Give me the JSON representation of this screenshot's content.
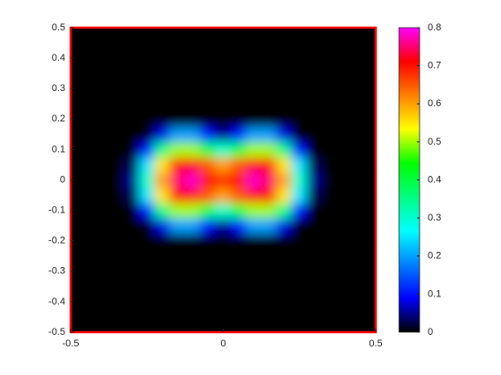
{
  "chart_data": {
    "type": "heatmap",
    "x": [
      -0.5,
      -0.45,
      -0.4,
      -0.35,
      -0.3,
      -0.25,
      -0.2,
      -0.15,
      -0.1,
      -0.05,
      0,
      0.05,
      0.1,
      0.15,
      0.2,
      0.25,
      0.3,
      0.35,
      0.4,
      0.45,
      0.5
    ],
    "y": [
      -0.5,
      -0.45,
      -0.4,
      -0.35,
      -0.3,
      -0.25,
      -0.2,
      -0.15,
      -0.1,
      -0.05,
      0,
      0.05,
      0.1,
      0.15,
      0.2,
      0.25,
      0.3,
      0.35,
      0.4,
      0.45,
      0.5
    ],
    "z": [
      [
        0,
        0,
        0,
        0,
        0,
        0,
        0,
        0,
        0,
        0,
        0,
        0,
        0,
        0,
        0,
        0,
        0,
        0,
        0,
        0,
        0
      ],
      [
        0,
        0,
        0,
        0,
        0,
        0,
        0,
        0,
        0,
        0,
        0,
        0,
        0,
        0,
        0,
        0,
        0,
        0,
        0,
        0,
        0
      ],
      [
        0,
        0,
        0,
        0,
        0,
        0,
        0,
        0,
        0,
        0,
        0,
        0,
        0,
        0,
        0,
        0,
        0,
        0,
        0,
        0,
        0
      ],
      [
        0,
        0,
        0,
        0,
        0,
        0,
        0,
        0,
        0,
        0,
        0,
        0,
        0,
        0,
        0,
        0,
        0,
        0,
        0,
        0,
        0
      ],
      [
        0,
        0,
        0,
        0,
        0,
        0,
        0,
        0,
        0,
        0,
        0,
        0,
        0,
        0,
        0,
        0,
        0,
        0,
        0,
        0,
        0
      ],
      [
        0,
        0,
        0,
        0,
        0,
        0,
        0,
        0,
        0,
        0,
        0,
        0,
        0,
        0,
        0,
        0,
        0,
        0,
        0,
        0,
        0
      ],
      [
        0,
        0,
        0,
        0,
        0,
        0,
        0,
        0,
        0,
        0,
        0,
        0,
        0,
        0,
        0,
        0,
        0,
        0,
        0,
        0,
        0
      ],
      [
        0,
        0,
        0,
        0,
        0,
        0,
        0.08,
        0.2,
        0.2,
        0.1,
        0.05,
        0.1,
        0.2,
        0.2,
        0.08,
        0,
        0,
        0,
        0,
        0,
        0
      ],
      [
        0,
        0,
        0,
        0,
        0,
        0.1,
        0.35,
        0.5,
        0.5,
        0.4,
        0.3,
        0.4,
        0.5,
        0.5,
        0.35,
        0.1,
        0,
        0,
        0,
        0,
        0
      ],
      [
        0,
        0,
        0,
        0,
        0.03,
        0.25,
        0.55,
        0.7,
        0.72,
        0.65,
        0.6,
        0.65,
        0.72,
        0.7,
        0.55,
        0.25,
        0.03,
        0,
        0,
        0,
        0
      ],
      [
        0,
        0,
        0,
        0,
        0.05,
        0.3,
        0.6,
        0.75,
        0.78,
        0.7,
        0.68,
        0.7,
        0.78,
        0.75,
        0.6,
        0.3,
        0.05,
        0,
        0,
        0,
        0
      ],
      [
        0,
        0,
        0,
        0,
        0.03,
        0.25,
        0.55,
        0.7,
        0.72,
        0.65,
        0.6,
        0.65,
        0.72,
        0.7,
        0.55,
        0.25,
        0.03,
        0,
        0,
        0,
        0
      ],
      [
        0,
        0,
        0,
        0,
        0,
        0.1,
        0.35,
        0.5,
        0.5,
        0.4,
        0.3,
        0.4,
        0.5,
        0.5,
        0.35,
        0.1,
        0,
        0,
        0,
        0,
        0
      ],
      [
        0,
        0,
        0,
        0,
        0,
        0,
        0.08,
        0.2,
        0.2,
        0.1,
        0.05,
        0.1,
        0.2,
        0.2,
        0.08,
        0,
        0,
        0,
        0,
        0,
        0
      ],
      [
        0,
        0,
        0,
        0,
        0,
        0,
        0,
        0,
        0,
        0,
        0,
        0,
        0,
        0,
        0,
        0,
        0,
        0,
        0,
        0,
        0
      ],
      [
        0,
        0,
        0,
        0,
        0,
        0,
        0,
        0,
        0,
        0,
        0,
        0,
        0,
        0,
        0,
        0,
        0,
        0,
        0,
        0,
        0
      ],
      [
        0,
        0,
        0,
        0,
        0,
        0,
        0,
        0,
        0,
        0,
        0,
        0,
        0,
        0,
        0,
        0,
        0,
        0,
        0,
        0,
        0
      ],
      [
        0,
        0,
        0,
        0,
        0,
        0,
        0,
        0,
        0,
        0,
        0,
        0,
        0,
        0,
        0,
        0,
        0,
        0,
        0,
        0,
        0
      ],
      [
        0,
        0,
        0,
        0,
        0,
        0,
        0,
        0,
        0,
        0,
        0,
        0,
        0,
        0,
        0,
        0,
        0,
        0,
        0,
        0,
        0
      ],
      [
        0,
        0,
        0,
        0,
        0,
        0,
        0,
        0,
        0,
        0,
        0,
        0,
        0,
        0,
        0,
        0,
        0,
        0,
        0,
        0,
        0
      ],
      [
        0,
        0,
        0,
        0,
        0,
        0,
        0,
        0,
        0,
        0,
        0,
        0,
        0,
        0,
        0,
        0,
        0,
        0,
        0,
        0,
        0
      ]
    ],
    "xlim": [
      -0.5,
      0.5
    ],
    "xticks": [
      -0.5,
      0,
      0.5
    ],
    "ylim": [
      -0.5,
      0.5
    ],
    "yticks": [
      -0.5,
      -0.4,
      -0.3,
      -0.2,
      -0.1,
      0,
      0.1,
      0.2,
      0.3,
      0.4,
      0.5
    ],
    "clim": [
      0,
      0.8
    ],
    "cticks": [
      0,
      0.1,
      0.2,
      0.3,
      0.4,
      0.5,
      0.6,
      0.7,
      0.8
    ],
    "colormap": [
      "#000000",
      "#0000ff",
      "#0080ff",
      "#00ffff",
      "#00ff80",
      "#00ff00",
      "#ffff00",
      "#ff8000",
      "#ff0000",
      "#ff00ff"
    ],
    "box_color": "#ff0000"
  }
}
